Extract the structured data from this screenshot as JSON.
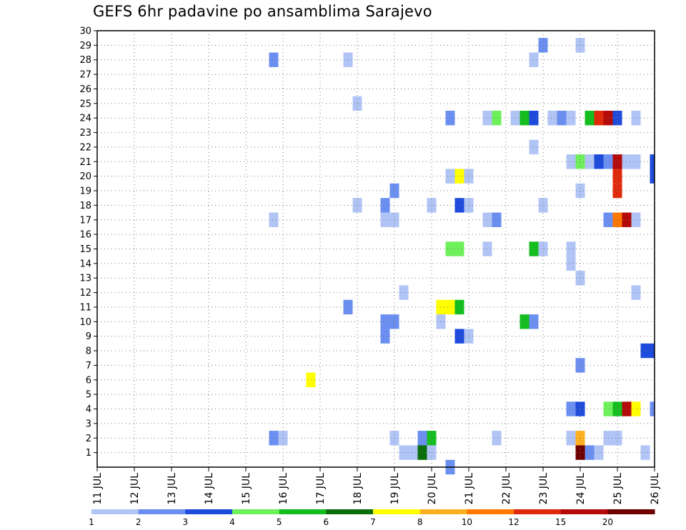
{
  "chart_data": {
    "type": "heatmap",
    "title": "GEFS 6hr padavine po ansamblima Sarajevo",
    "xlabel": "",
    "ylabel": "",
    "x_ticks": [
      "11 JUL",
      "12 JUL",
      "13 JUL",
      "14 JUL",
      "15 JUL",
      "16 JUL",
      "17 JUL",
      "18 JUL",
      "19 JUL",
      "20 JUL",
      "21 JUL",
      "22 JUL",
      "23 JUL",
      "24 JUL",
      "25 JUL",
      "26 JUL"
    ],
    "x_range": [
      "11 JUL 00Z",
      "26 JUL 00Z"
    ],
    "x_step": "6hr",
    "y_ticks": [
      1,
      2,
      3,
      4,
      5,
      6,
      7,
      8,
      9,
      10,
      11,
      12,
      13,
      14,
      15,
      16,
      17,
      18,
      19,
      20,
      21,
      22,
      23,
      24,
      25,
      26,
      27,
      28,
      29,
      30
    ],
    "y_range": [
      0,
      30
    ],
    "grid": true,
    "color_scale": {
      "labels": [
        "1",
        "2",
        "3",
        "4",
        "5",
        "6",
        "7",
        "8",
        "10",
        "12",
        "15",
        "20"
      ],
      "colors": [
        "#b0c4f5",
        "#6b8ff0",
        "#1e4bdb",
        "#6ef05a",
        "#14be1e",
        "#0a6e0a",
        "#ffff00",
        "#ffb020",
        "#ff7800",
        "#e02a0a",
        "#b40a0a",
        "#6e0000"
      ]
    },
    "cells": [
      {
        "member": 29,
        "day": 23.0,
        "level": 2
      },
      {
        "member": 29,
        "day": 24.0,
        "level": 1
      },
      {
        "member": 28,
        "day": 15.75,
        "level": 2
      },
      {
        "member": 28,
        "day": 17.75,
        "level": 1
      },
      {
        "member": 28,
        "day": 22.75,
        "level": 1
      },
      {
        "member": 25,
        "day": 18.0,
        "level": 1
      },
      {
        "member": 24,
        "day": 20.5,
        "level": 2
      },
      {
        "member": 24,
        "day": 21.5,
        "level": 1
      },
      {
        "member": 24,
        "day": 21.75,
        "level": 4
      },
      {
        "member": 24,
        "day": 22.25,
        "level": 1
      },
      {
        "member": 24,
        "day": 22.5,
        "level": 5
      },
      {
        "member": 24,
        "day": 22.75,
        "level": 3
      },
      {
        "member": 24,
        "day": 23.25,
        "level": 1
      },
      {
        "member": 24,
        "day": 23.5,
        "level": 2
      },
      {
        "member": 24,
        "day": 23.75,
        "level": 1
      },
      {
        "member": 24,
        "day": 24.25,
        "level": 5
      },
      {
        "member": 24,
        "day": 24.5,
        "level": 10
      },
      {
        "member": 24,
        "day": 24.75,
        "level": 11
      },
      {
        "member": 24,
        "day": 25.0,
        "level": 3
      },
      {
        "member": 24,
        "day": 25.5,
        "level": 1
      },
      {
        "member": 22,
        "day": 22.75,
        "level": 1
      },
      {
        "member": 21,
        "day": 23.75,
        "level": 1
      },
      {
        "member": 21,
        "day": 24.0,
        "level": 4
      },
      {
        "member": 21,
        "day": 24.25,
        "level": 1
      },
      {
        "member": 21,
        "day": 24.5,
        "level": 3
      },
      {
        "member": 21,
        "day": 24.75,
        "level": 2
      },
      {
        "member": 21,
        "day": 25.0,
        "level": 11
      },
      {
        "member": 21,
        "day": 25.25,
        "level": 1
      },
      {
        "member": 21,
        "day": 25.5,
        "level": 1
      },
      {
        "member": 21,
        "day": 26.0,
        "level": 3
      },
      {
        "member": 20,
        "day": 20.5,
        "level": 1
      },
      {
        "member": 20,
        "day": 20.75,
        "level": 7
      },
      {
        "member": 20,
        "day": 21.0,
        "level": 1
      },
      {
        "member": 20,
        "day": 25.0,
        "level": 10
      },
      {
        "member": 20,
        "day": 26.0,
        "level": 3
      },
      {
        "member": 19,
        "day": 19.0,
        "level": 2
      },
      {
        "member": 19,
        "day": 24.0,
        "level": 1
      },
      {
        "member": 19,
        "day": 25.0,
        "level": 10
      },
      {
        "member": 18,
        "day": 18.0,
        "level": 1
      },
      {
        "member": 18,
        "day": 18.75,
        "level": 2
      },
      {
        "member": 18,
        "day": 20.0,
        "level": 1
      },
      {
        "member": 18,
        "day": 20.75,
        "level": 3
      },
      {
        "member": 18,
        "day": 21.0,
        "level": 1
      },
      {
        "member": 18,
        "day": 23.0,
        "level": 1
      },
      {
        "member": 17,
        "day": 15.75,
        "level": 1
      },
      {
        "member": 17,
        "day": 18.75,
        "level": 1
      },
      {
        "member": 17,
        "day": 19.0,
        "level": 1
      },
      {
        "member": 17,
        "day": 21.5,
        "level": 1
      },
      {
        "member": 17,
        "day": 21.75,
        "level": 2
      },
      {
        "member": 17,
        "day": 24.75,
        "level": 2
      },
      {
        "member": 17,
        "day": 25.0,
        "level": 9
      },
      {
        "member": 17,
        "day": 25.25,
        "level": 11
      },
      {
        "member": 17,
        "day": 25.5,
        "level": 1
      },
      {
        "member": 15,
        "day": 20.5,
        "level": 4
      },
      {
        "member": 15,
        "day": 20.75,
        "level": 4
      },
      {
        "member": 15,
        "day": 21.5,
        "level": 1
      },
      {
        "member": 15,
        "day": 22.75,
        "level": 5
      },
      {
        "member": 15,
        "day": 23.0,
        "level": 1
      },
      {
        "member": 15,
        "day": 23.75,
        "level": 1
      },
      {
        "member": 14,
        "day": 23.75,
        "level": 1
      },
      {
        "member": 13,
        "day": 24.0,
        "level": 1
      },
      {
        "member": 12,
        "day": 19.25,
        "level": 1
      },
      {
        "member": 12,
        "day": 25.5,
        "level": 1
      },
      {
        "member": 11,
        "day": 17.75,
        "level": 2
      },
      {
        "member": 11,
        "day": 20.25,
        "level": 7
      },
      {
        "member": 11,
        "day": 20.5,
        "level": 7
      },
      {
        "member": 11,
        "day": 20.75,
        "level": 5
      },
      {
        "member": 10,
        "day": 18.75,
        "level": 2
      },
      {
        "member": 10,
        "day": 19.0,
        "level": 2
      },
      {
        "member": 10,
        "day": 20.25,
        "level": 1
      },
      {
        "member": 10,
        "day": 22.5,
        "level": 5
      },
      {
        "member": 10,
        "day": 22.75,
        "level": 2
      },
      {
        "member": 9,
        "day": 18.75,
        "level": 2
      },
      {
        "member": 9,
        "day": 20.75,
        "level": 3
      },
      {
        "member": 9,
        "day": 21.0,
        "level": 1
      },
      {
        "member": 8,
        "day": 25.75,
        "level": 3
      },
      {
        "member": 8,
        "day": 26.0,
        "level": 3
      },
      {
        "member": 7,
        "day": 24.0,
        "level": 2
      },
      {
        "member": 6,
        "day": 16.75,
        "level": 7
      },
      {
        "member": 4,
        "day": 23.75,
        "level": 2
      },
      {
        "member": 4,
        "day": 24.0,
        "level": 3
      },
      {
        "member": 4,
        "day": 24.75,
        "level": 4
      },
      {
        "member": 4,
        "day": 25.0,
        "level": 5
      },
      {
        "member": 4,
        "day": 25.25,
        "level": 11
      },
      {
        "member": 4,
        "day": 25.5,
        "level": 7
      },
      {
        "member": 4,
        "day": 26.0,
        "level": 2
      },
      {
        "member": 2,
        "day": 15.75,
        "level": 2
      },
      {
        "member": 2,
        "day": 16.0,
        "level": 1
      },
      {
        "member": 2,
        "day": 19.0,
        "level": 1
      },
      {
        "member": 2,
        "day": 19.75,
        "level": 2
      },
      {
        "member": 2,
        "day": 20.0,
        "level": 5
      },
      {
        "member": 2,
        "day": 21.75,
        "level": 1
      },
      {
        "member": 2,
        "day": 23.75,
        "level": 1
      },
      {
        "member": 2,
        "day": 24.0,
        "level": 8
      },
      {
        "member": 2,
        "day": 24.75,
        "level": 1
      },
      {
        "member": 2,
        "day": 25.0,
        "level": 1
      },
      {
        "member": 1,
        "day": 19.25,
        "level": 1
      },
      {
        "member": 1,
        "day": 19.5,
        "level": 1
      },
      {
        "member": 1,
        "day": 19.75,
        "level": 6
      },
      {
        "member": 1,
        "day": 20.0,
        "level": 1
      },
      {
        "member": 1,
        "day": 24.0,
        "level": 12
      },
      {
        "member": 1,
        "day": 24.25,
        "level": 2
      },
      {
        "member": 1,
        "day": 24.5,
        "level": 1
      },
      {
        "member": 1,
        "day": 25.75,
        "level": 1
      },
      {
        "member": 0,
        "day": 20.5,
        "level": 2
      }
    ]
  }
}
